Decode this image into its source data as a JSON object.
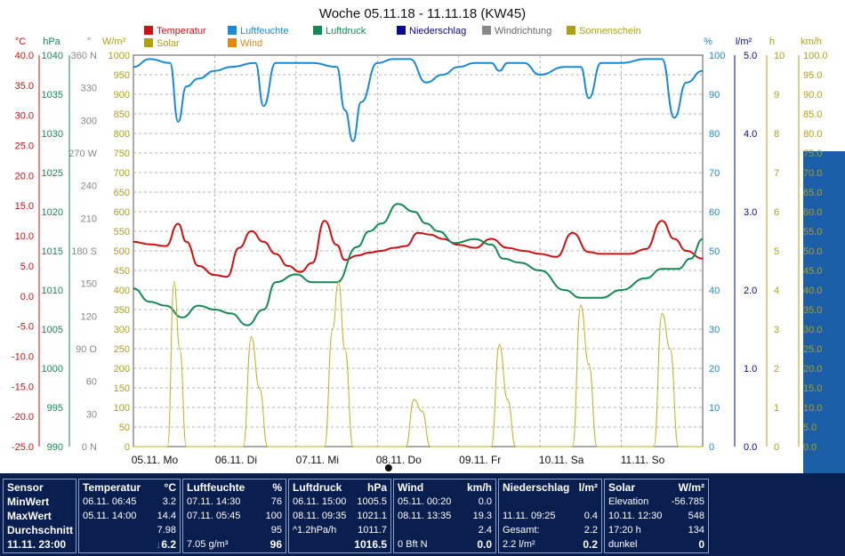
{
  "chart_data": {
    "type": "line",
    "title": "Woche 05.11.18 - 11.11.18 (KW45)",
    "x_labels": [
      "05.11. Mo",
      "06.11. Di",
      "07.11. Mi",
      "08.11. Do",
      "09.11. Fr",
      "10.11. Sa",
      "11.11. So"
    ],
    "grid": true,
    "legend": [
      {
        "name": "Temperatur",
        "color": "#d01010"
      },
      {
        "name": "Luftfeuchte",
        "color": "#1a8ad6"
      },
      {
        "name": "Luftdruck",
        "color": "#138a55"
      },
      {
        "name": "Niederschlag",
        "color": "#0a0a90"
      },
      {
        "name": "Windrichtung",
        "color": "#888888"
      },
      {
        "name": "Sonnenschein",
        "color": "#b0a010"
      },
      {
        "name": "Solar",
        "color": "#b0a010"
      },
      {
        "name": "Wind",
        "color": "#e08a10"
      }
    ],
    "axes": {
      "temperature": {
        "unit": "°C",
        "color": "#d01010",
        "ticks": [
          "40.0",
          "35.0",
          "30.0",
          "25.0",
          "20.0",
          "15.0",
          "10.0",
          "5.0",
          "0.0",
          "-5.0",
          "-10.0",
          "-15.0",
          "-20.0",
          "-25.0"
        ]
      },
      "pressure": {
        "unit": "hPa",
        "color": "#138a55",
        "ticks": [
          "1040",
          "1035",
          "1030",
          "1025",
          "1020",
          "1015",
          "1010",
          "1005",
          "1000",
          "995",
          "990"
        ]
      },
      "direction": {
        "unit": "°",
        "color": "#888888",
        "ticks": [
          "360 N",
          "330",
          "300",
          "270 W",
          "240",
          "210",
          "180 S",
          "150",
          "120",
          "90 O",
          "60",
          "30",
          "0 N"
        ]
      },
      "solar": {
        "unit": "W/m²",
        "color": "#b0a010",
        "ticks": [
          "1000",
          "950",
          "900",
          "850",
          "800",
          "750",
          "700",
          "650",
          "600",
          "550",
          "500",
          "450",
          "400",
          "350",
          "300",
          "250",
          "200",
          "150",
          "100",
          "50",
          "0"
        ]
      },
      "humidity": {
        "unit": "%",
        "color": "#1a8ad6",
        "ticks": [
          "100",
          "90",
          "80",
          "70",
          "60",
          "50",
          "40",
          "30",
          "20",
          "10",
          "0"
        ]
      },
      "rain": {
        "unit": "l/m²",
        "color": "#0a0a90",
        "ticks": [
          "5.0",
          "4.0",
          "3.0",
          "2.0",
          "1.0",
          "0.0"
        ]
      },
      "sunshine": {
        "unit": "h",
        "color": "#b0a010",
        "ticks": [
          "10",
          "9",
          "8",
          "7",
          "6",
          "5",
          "4",
          "3",
          "2",
          "1",
          "0"
        ]
      },
      "wind": {
        "unit": "km/h",
        "color": "#b0a010",
        "ticks": [
          "100.0",
          "95.0",
          "90.0",
          "85.0",
          "80.0",
          "75.0",
          "70.0",
          "65.0",
          "60.0",
          "55.0",
          "50.0",
          "45.0",
          "40.0",
          "35.0",
          "30.0",
          "25.0",
          "20.0",
          "15.0",
          "10.0",
          "5.0",
          "0.0"
        ]
      }
    },
    "series": [
      {
        "name": "Temperatur",
        "axis": "temperature",
        "x": [
          0,
          0.2,
          0.4,
          0.55,
          0.65,
          0.8,
          1.0,
          1.15,
          1.3,
          1.45,
          1.6,
          1.75,
          1.9,
          2.05,
          2.2,
          2.35,
          2.5,
          2.6,
          2.75,
          2.9,
          3.05,
          3.2,
          3.35,
          3.5,
          3.65,
          3.8,
          4.0,
          4.2,
          4.4,
          4.6,
          4.8,
          5.0,
          5.2,
          5.4,
          5.6,
          5.75,
          5.9,
          6.1,
          6.3,
          6.5,
          6.65,
          6.8,
          7.0
        ],
        "y": [
          9.0,
          8.6,
          8.3,
          12.0,
          9.0,
          5.0,
          3.5,
          3.2,
          8.0,
          10.8,
          9.0,
          7.0,
          5.0,
          4.0,
          5.5,
          12.5,
          8.5,
          6.0,
          6.7,
          7.2,
          7.5,
          8.0,
          8.3,
          10.5,
          10.2,
          9.5,
          8.5,
          8.0,
          9.5,
          8.0,
          7.5,
          7.0,
          6.5,
          10.5,
          7.3,
          7.0,
          7.0,
          7.0,
          7.8,
          12.5,
          9.5,
          7.5,
          6.2
        ]
      },
      {
        "name": "Luftfeuchte",
        "axis": "humidity",
        "x": [
          0,
          0.2,
          0.45,
          0.55,
          0.65,
          0.8,
          1.0,
          1.2,
          1.5,
          1.6,
          1.75,
          2.0,
          2.2,
          2.5,
          2.6,
          2.7,
          2.8,
          3.0,
          3.2,
          3.4,
          3.6,
          3.8,
          4.0,
          4.2,
          4.4,
          4.5,
          4.6,
          4.8,
          5.0,
          5.3,
          5.5,
          5.6,
          5.75,
          6.0,
          6.3,
          6.5,
          6.65,
          6.8,
          7.0
        ],
        "y": [
          97,
          99,
          98,
          83,
          92,
          94,
          96,
          97,
          98,
          87,
          98,
          98,
          98,
          97,
          86,
          78,
          88,
          98,
          99,
          99,
          93,
          95,
          97,
          98,
          98,
          96,
          98,
          98,
          95,
          97,
          97,
          89,
          98,
          98,
          99,
          99,
          84,
          93,
          96
        ]
      },
      {
        "name": "Luftdruck",
        "axis": "pressure",
        "x": [
          0,
          0.2,
          0.4,
          0.6,
          0.8,
          1.0,
          1.2,
          1.4,
          1.6,
          1.75,
          2.0,
          2.2,
          2.5,
          2.75,
          2.9,
          3.05,
          3.25,
          3.45,
          3.6,
          3.75,
          3.95,
          4.2,
          4.4,
          4.55,
          4.75,
          5.0,
          5.3,
          5.5,
          5.75,
          6.0,
          6.3,
          6.5,
          6.7,
          6.85,
          7.0
        ],
        "y": [
          1010.2,
          1008.5,
          1008.0,
          1006.5,
          1008.0,
          1007.5,
          1007.0,
          1005.5,
          1007.5,
          1011.0,
          1012.0,
          1011.0,
          1011.0,
          1015.5,
          1017.5,
          1018.5,
          1021.0,
          1020.0,
          1018.5,
          1017.5,
          1016.0,
          1016.5,
          1015.8,
          1014.0,
          1013.5,
          1012.5,
          1010.0,
          1009.0,
          1009.0,
          1010.0,
          1011.5,
          1012.7,
          1012.7,
          1014.0,
          1016.5
        ]
      },
      {
        "name": "Solar",
        "axis": "solar",
        "x": [
          0,
          0.42,
          0.5,
          0.57,
          0.65,
          1.0,
          1.35,
          1.45,
          1.55,
          1.65,
          2.0,
          2.35,
          2.45,
          2.52,
          2.6,
          2.7,
          3.0,
          3.35,
          3.45,
          3.55,
          3.65,
          4.0,
          4.4,
          4.5,
          4.6,
          4.7,
          5.0,
          5.4,
          5.5,
          5.6,
          5.7,
          6.0,
          6.4,
          6.5,
          6.6,
          6.7,
          7.0
        ],
        "y": [
          0,
          0,
          420,
          250,
          0,
          0,
          0,
          280,
          150,
          0,
          0,
          0,
          300,
          420,
          250,
          0,
          0,
          0,
          120,
          90,
          0,
          0,
          0,
          260,
          120,
          0,
          0,
          0,
          360,
          210,
          0,
          0,
          0,
          340,
          250,
          0,
          0
        ]
      }
    ]
  },
  "panel": {
    "sensor": {
      "header": "Sensor",
      "min": "MinWert",
      "max": "MaxWert",
      "avg": "Durchschnitt",
      "time": "11.11. 23:00"
    },
    "temp": {
      "header": "Temperatur",
      "unit": "°C",
      "min_time": "06.11.  06:45",
      "min_val": "3.2",
      "max_time": "05.11.  14:00",
      "max_val": "14.4",
      "avg_val": "7.98",
      "cur_val": "6.2",
      "trend": "↓"
    },
    "hum": {
      "header": "Luftfeuchte",
      "unit": "%",
      "min_time": "07.11.  14:30",
      "min_val": "76",
      "max_time": "07.11.  05:45",
      "max_val": "100",
      "avg_val": "95",
      "cur_extra": "7.05 g/m³",
      "cur_val": "96"
    },
    "press": {
      "header": "Luftdruck",
      "unit": "hPa",
      "min_time": "06.11.  15:00",
      "min_val": "1005.5",
      "max_time": "08.11.  09:35",
      "max_val": "1021.1",
      "avg_extra": "^1.2hPa/h",
      "avg_val": "1011.7",
      "cur_val": "1016.5"
    },
    "wind": {
      "header": "Wind",
      "unit": "km/h",
      "min_time": "05.11.  00:20",
      "min_val": "0.0",
      "max_time": "08.11.  13:35",
      "max_val": "19.3",
      "avg_val": "2.4",
      "cur_extra": "0 Bft N",
      "cur_val": "0.0"
    },
    "rain": {
      "header": "Niederschlag",
      "unit": "l/m²",
      "max_time": "11.11.  09:25",
      "max_val": "0.4",
      "total_label": "Gesamt:",
      "total_val": "2.2",
      "cur_extra": "2.2 l/m²",
      "cur_val": "0.2"
    },
    "solar": {
      "header": "Solar",
      "unit": "W/m²",
      "r1_label": "Elevation",
      "r1_val": "-56.785",
      "r2_label": "10.11.  12:30",
      "r2_val": "548",
      "r3_label": "17:20 h",
      "r3_val": "134",
      "r4_label": "dunkel",
      "r4_val": "0"
    }
  }
}
